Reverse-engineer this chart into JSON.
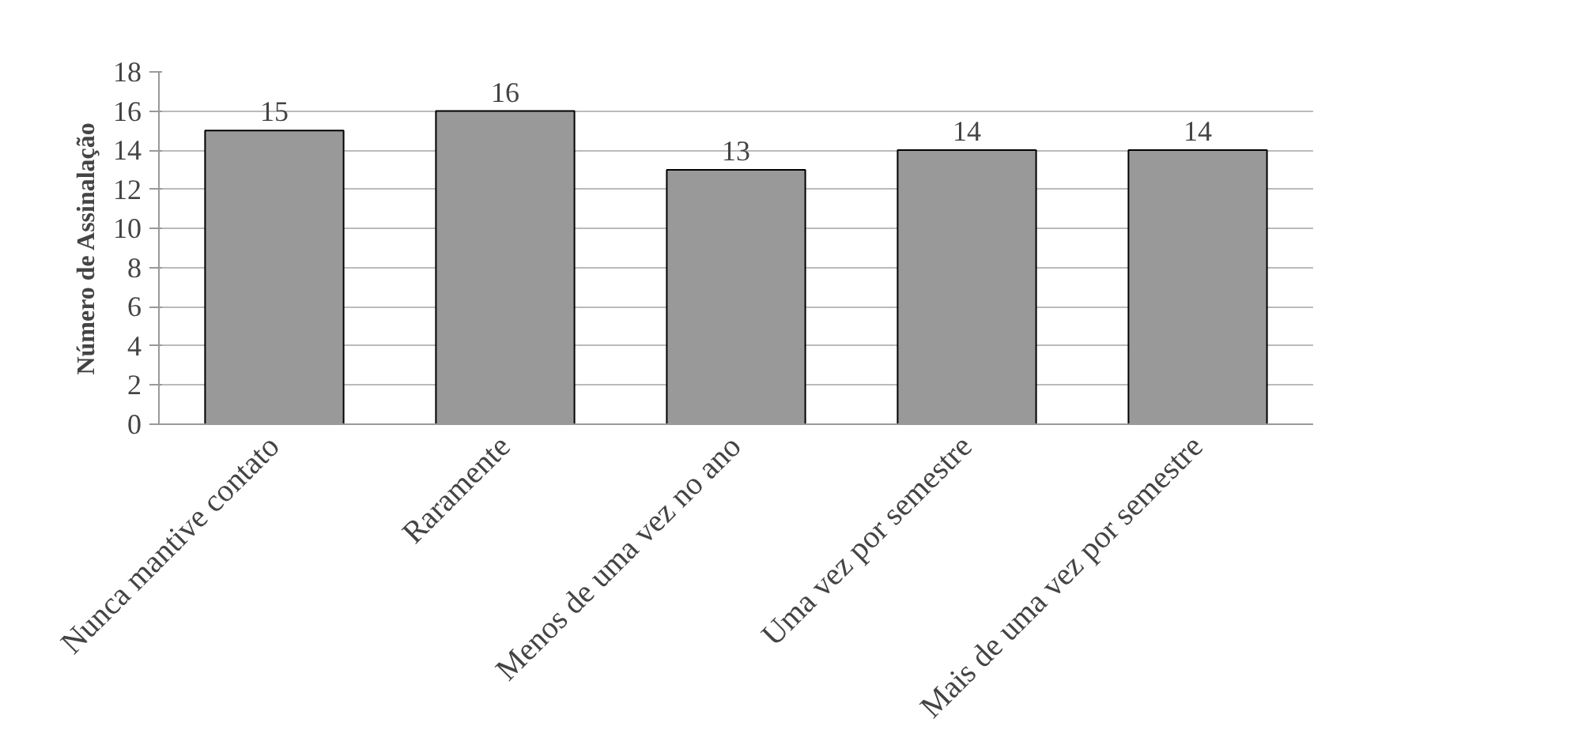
{
  "chart_data": {
    "type": "bar",
    "ylabel": "Número de Assinalação",
    "categories": [
      "Nunca mantive contato",
      "Raramente",
      "Menos de uma vez no ano",
      "Uma vez por semestre",
      "Mais de uma vez por semestre"
    ],
    "values": [
      15,
      16,
      13,
      14,
      14
    ],
    "color": "#999999",
    "ylim": [
      0,
      18
    ],
    "yticks": [
      0,
      2,
      4,
      6,
      8,
      10,
      12,
      14,
      16,
      18
    ],
    "grid": "y",
    "data_labels": true
  }
}
